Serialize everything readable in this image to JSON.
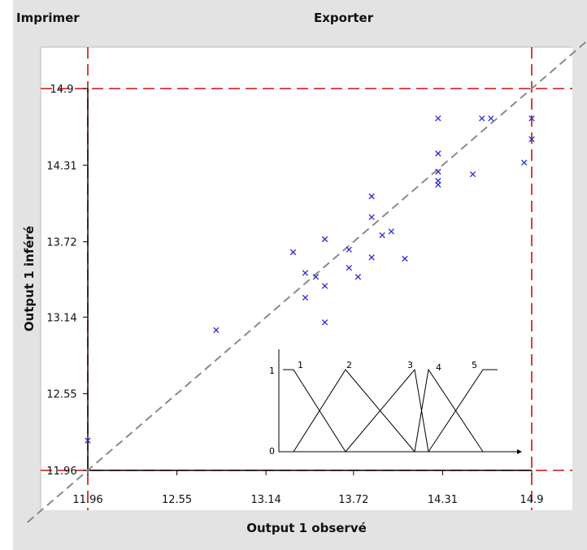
{
  "toolbar": {
    "print_label": "Imprimer",
    "export_label": "Exporter"
  },
  "chart_data": {
    "type": "scatter",
    "title": "",
    "xlabel": "Output 1 observé",
    "ylabel": "Output 1 inféré",
    "xlim": [
      11.96,
      14.9
    ],
    "ylim": [
      11.96,
      14.9
    ],
    "xticks": [
      11.96,
      12.55,
      13.14,
      13.72,
      14.31,
      14.9
    ],
    "yticks": [
      11.96,
      12.55,
      13.14,
      13.72,
      14.31,
      14.9
    ],
    "xtick_labels": [
      "11.96",
      "12.55",
      "13.14",
      "13.72",
      "14.31",
      "14.9"
    ],
    "ytick_labels": [
      "11.96",
      "12.55",
      "13.14",
      "13.72",
      "14.31",
      "14.9"
    ],
    "marker": "x",
    "marker_color": "#2a2ad0",
    "diagonal_color": "#8a8a8a",
    "bound_color": "#cc1111",
    "points": [
      [
        11.96,
        12.19
      ],
      [
        12.81,
        13.04
      ],
      [
        13.32,
        13.64
      ],
      [
        13.4,
        13.29
      ],
      [
        13.4,
        13.48
      ],
      [
        13.47,
        13.45
      ],
      [
        13.53,
        13.1
      ],
      [
        13.53,
        13.38
      ],
      [
        13.53,
        13.74
      ],
      [
        13.69,
        13.52
      ],
      [
        13.69,
        13.66
      ],
      [
        13.75,
        13.45
      ],
      [
        13.84,
        13.6
      ],
      [
        13.84,
        13.91
      ],
      [
        13.84,
        14.07
      ],
      [
        13.91,
        13.77
      ],
      [
        13.97,
        13.8
      ],
      [
        14.06,
        13.59
      ],
      [
        14.28,
        14.16
      ],
      [
        14.28,
        14.19
      ],
      [
        14.28,
        14.26
      ],
      [
        14.28,
        14.4
      ],
      [
        14.28,
        14.67
      ],
      [
        14.51,
        14.24
      ],
      [
        14.57,
        14.67
      ],
      [
        14.63,
        14.67
      ],
      [
        14.85,
        14.33
      ],
      [
        14.9,
        14.51
      ],
      [
        14.9,
        14.67
      ]
    ],
    "inset": {
      "type": "membership-functions",
      "y_labels": [
        "1",
        "0"
      ],
      "labels": [
        "1",
        "2",
        "3",
        "4",
        "5"
      ]
    }
  }
}
